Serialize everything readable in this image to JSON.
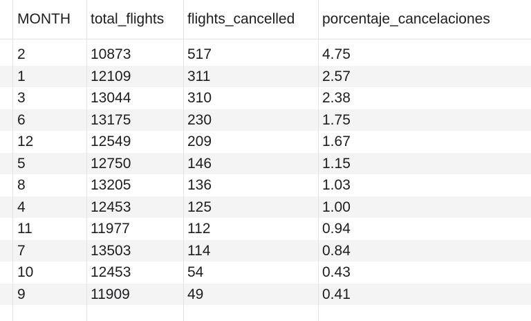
{
  "table": {
    "columns": [
      "MONTH",
      "total_flights",
      "flights_cancelled",
      "porcentaje_cancelaciones"
    ],
    "rows": [
      [
        "2",
        "10873",
        "517",
        "4.75"
      ],
      [
        "1",
        "12109",
        "311",
        "2.57"
      ],
      [
        "3",
        "13044",
        "310",
        "2.38"
      ],
      [
        "6",
        "13175",
        "230",
        "1.75"
      ],
      [
        "12",
        "12549",
        "209",
        "1.67"
      ],
      [
        "5",
        "12750",
        "146",
        "1.15"
      ],
      [
        "8",
        "13205",
        "136",
        "1.03"
      ],
      [
        "4",
        "12453",
        "125",
        "1.00"
      ],
      [
        "11",
        "11977",
        "112",
        "0.94"
      ],
      [
        "7",
        "13503",
        "114",
        "0.84"
      ],
      [
        "10",
        "12453",
        "54",
        "0.43"
      ],
      [
        "9",
        "11909",
        "49",
        "0.41"
      ]
    ]
  }
}
